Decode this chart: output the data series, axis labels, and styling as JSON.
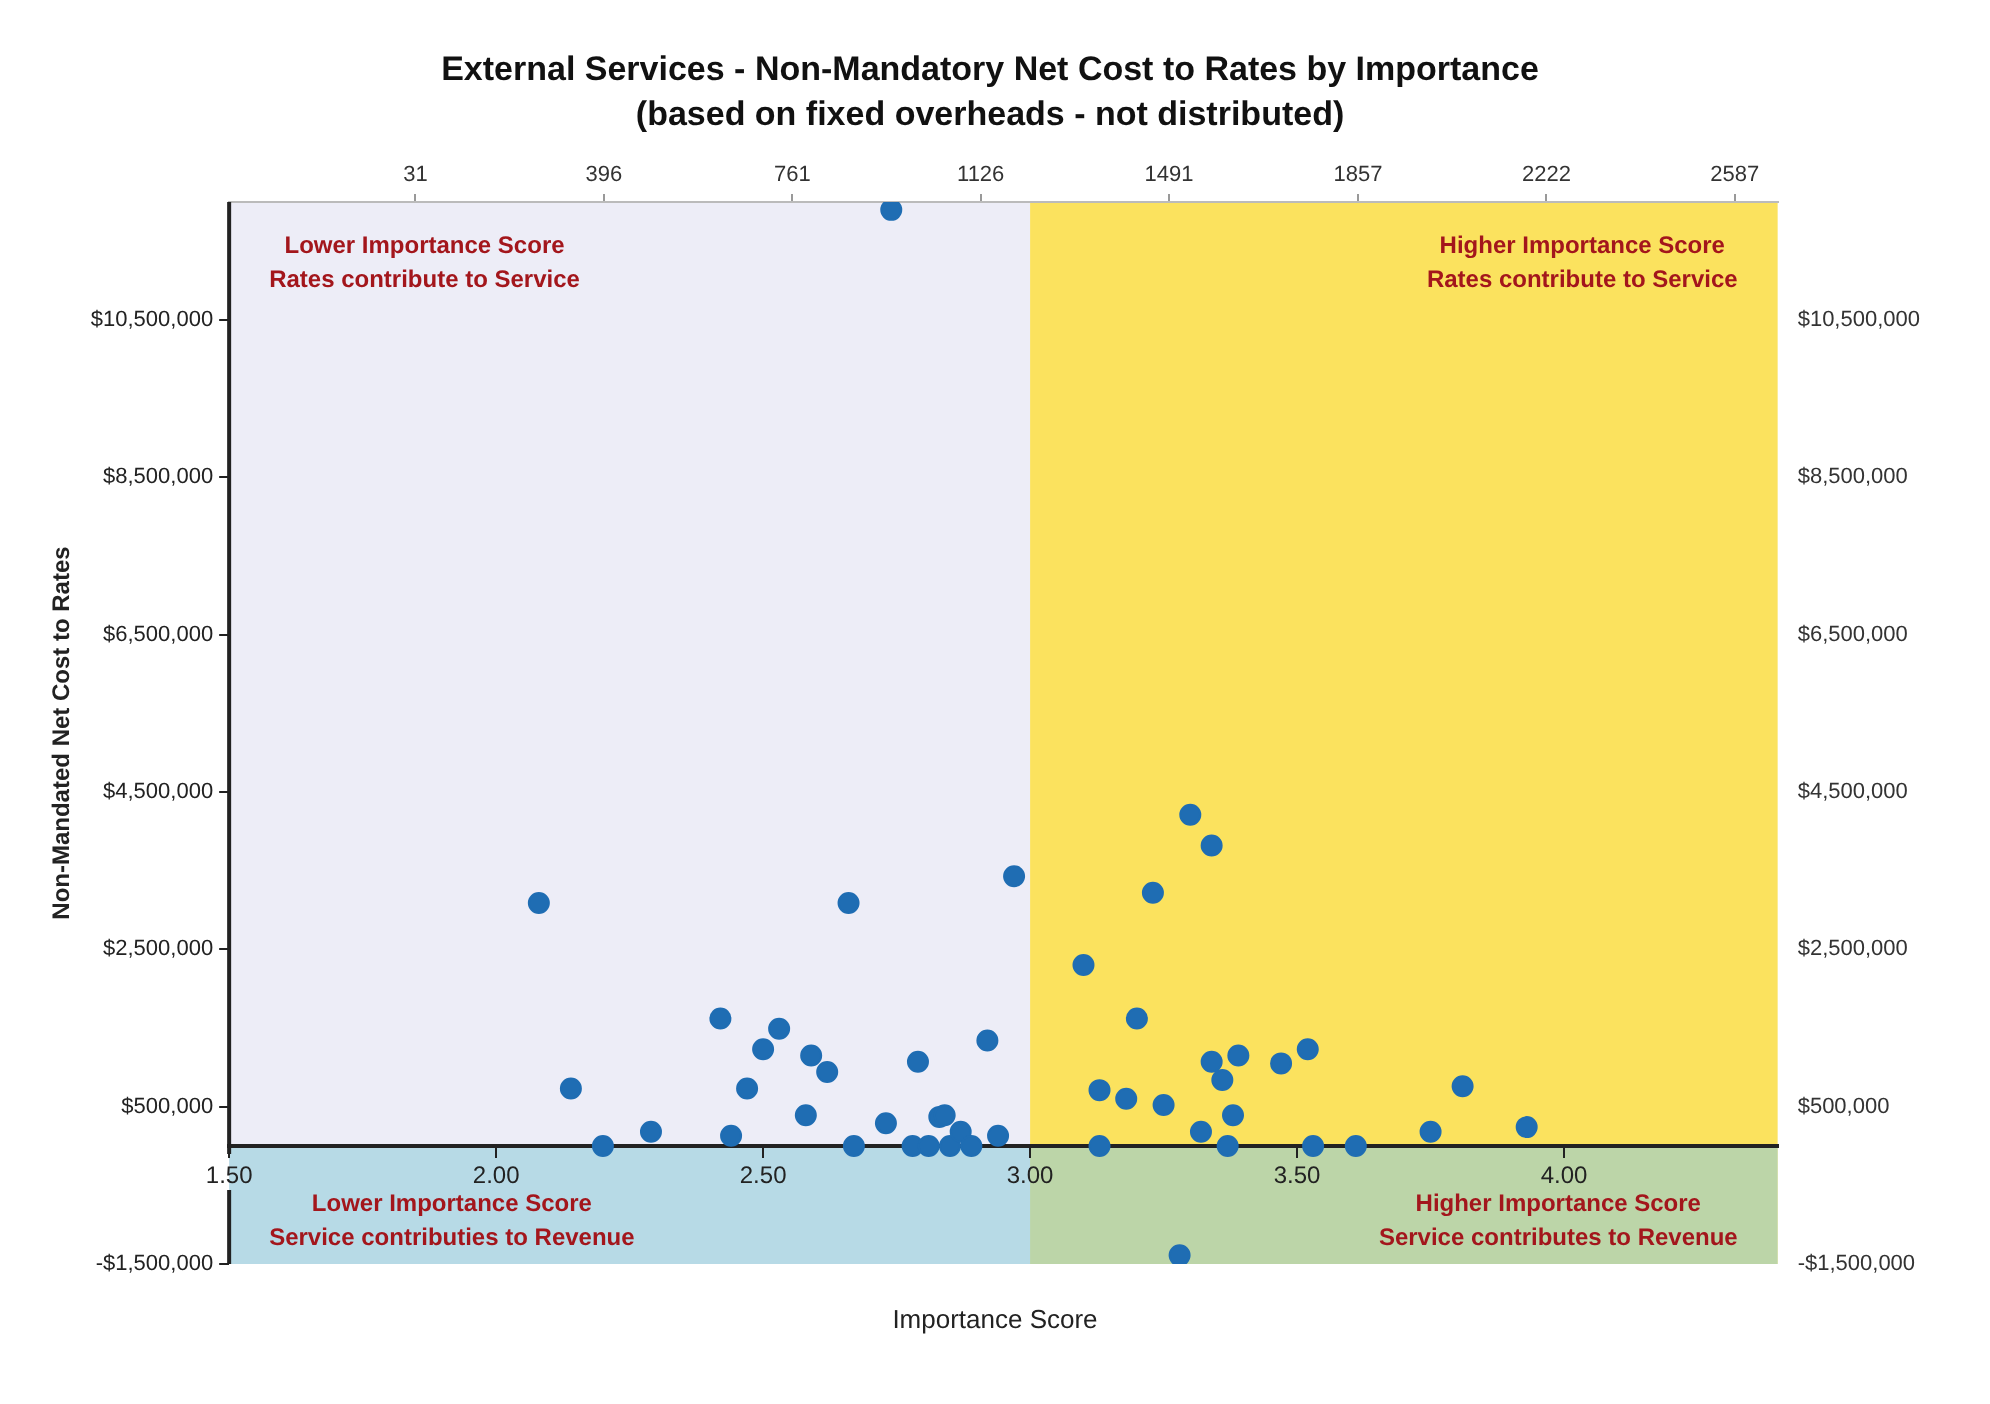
{
  "chart_data": {
    "type": "scatter",
    "title": "External Services - Non-Mandatory Net Cost to Rates by Importance",
    "subtitle": "(based on fixed overheads - not distributed)",
    "xlabel": "Importance Score",
    "ylabel": "Non-Mandated Net Cost to Rates",
    "annotations": [
      "Lower Importance Score\nRates contribute to Service",
      "Higher Importance Score\nRates contribute to Service",
      "Lower Importance Score\nService contributies to Revenue",
      "Higher Importance Score\nService contributes to Revenue"
    ],
    "series": [
      {
        "color": "#1f6db3",
        "x": [
          2.74,
          2.08,
          2.14,
          2.2,
          2.29,
          2.42,
          2.44,
          2.47,
          2.5,
          2.53,
          2.58,
          2.59,
          2.62,
          2.66,
          2.67,
          2.73,
          2.79,
          2.78,
          2.81,
          2.83,
          2.84,
          2.85,
          2.87,
          2.89,
          2.92,
          2.94,
          2.97,
          3.1,
          3.13,
          3.13,
          3.18,
          3.2,
          3.23,
          3.25,
          3.28,
          3.3,
          3.32,
          3.34,
          3.34,
          3.36,
          3.37,
          3.38,
          3.39,
          3.47,
          3.52,
          3.53,
          3.61,
          3.75,
          3.81,
          3.93
        ],
        "values": [
          11900000,
          3090000,
          730000,
          0,
          180000,
          1620000,
          130000,
          730000,
          1230000,
          1490000,
          390000,
          1150000,
          940000,
          3090000,
          0,
          290000,
          1070000,
          0,
          0,
          370000,
          390000,
          0,
          180000,
          0,
          1340000,
          130000,
          3430000,
          2300000,
          710000,
          0,
          600000,
          1620000,
          3220000,
          520000,
          -1390000,
          4210000,
          180000,
          3820000,
          1070000,
          840000,
          0,
          390000,
          1150000,
          1050000,
          1230000,
          0,
          0,
          180000,
          760000,
          240000
        ]
      }
    ],
    "xlim": [
      1.5,
      4.4
    ],
    "xticks": [
      {
        "value": 1.5,
        "label": "1.50"
      },
      {
        "value": 2,
        "label": "2.00"
      },
      {
        "value": 2.5,
        "label": "2.50"
      },
      {
        "value": 3,
        "label": "3.00"
      },
      {
        "value": 3.5,
        "label": "3.50"
      },
      {
        "value": 4,
        "label": "4.00"
      }
    ],
    "x2lim": [
      -330,
      2670
    ],
    "x2ticks": [
      31,
      396,
      761,
      1126,
      1491,
      1857,
      2222,
      2587
    ],
    "ylim": [
      -1500000,
      12000000
    ],
    "yticks": [
      {
        "value": -1500000,
        "label": "-$1,500,000"
      },
      {
        "value": 500000,
        "label": "$500,000"
      },
      {
        "value": 2500000,
        "label": "$2,500,000"
      },
      {
        "value": 4500000,
        "label": "$4,500,000"
      },
      {
        "value": 6500000,
        "label": "$6,500,000"
      },
      {
        "value": 8500000,
        "label": "$8,500,000"
      },
      {
        "value": 10500000,
        "label": "$10,500,000"
      }
    ],
    "y2lim": [
      -1500000,
      12000000
    ],
    "y2ticks": [
      {
        "value": -1500000,
        "label": "-$1,500,000"
      },
      {
        "value": 500000,
        "label": "$500,000"
      },
      {
        "value": 2500000,
        "label": "$2,500,000"
      },
      {
        "value": 4500000,
        "label": "$4,500,000"
      },
      {
        "value": 6500000,
        "label": "$6,500,000"
      },
      {
        "value": 8500000,
        "label": "$8,500,000"
      },
      {
        "value": 10500000,
        "label": "$10,500,000"
      }
    ],
    "bands": [
      {
        "axis": "x",
        "from": 1.5,
        "to": 3.0,
        "color": "#ededf7"
      },
      {
        "axis": "x",
        "from": 3.0,
        "to": 4.4,
        "color": "#fbe25e"
      },
      {
        "axis": "y",
        "from": -1500000,
        "to": 0,
        "color": "#93cddb"
      }
    ],
    "grid": false,
    "legend": false,
    "marker": "circle"
  }
}
